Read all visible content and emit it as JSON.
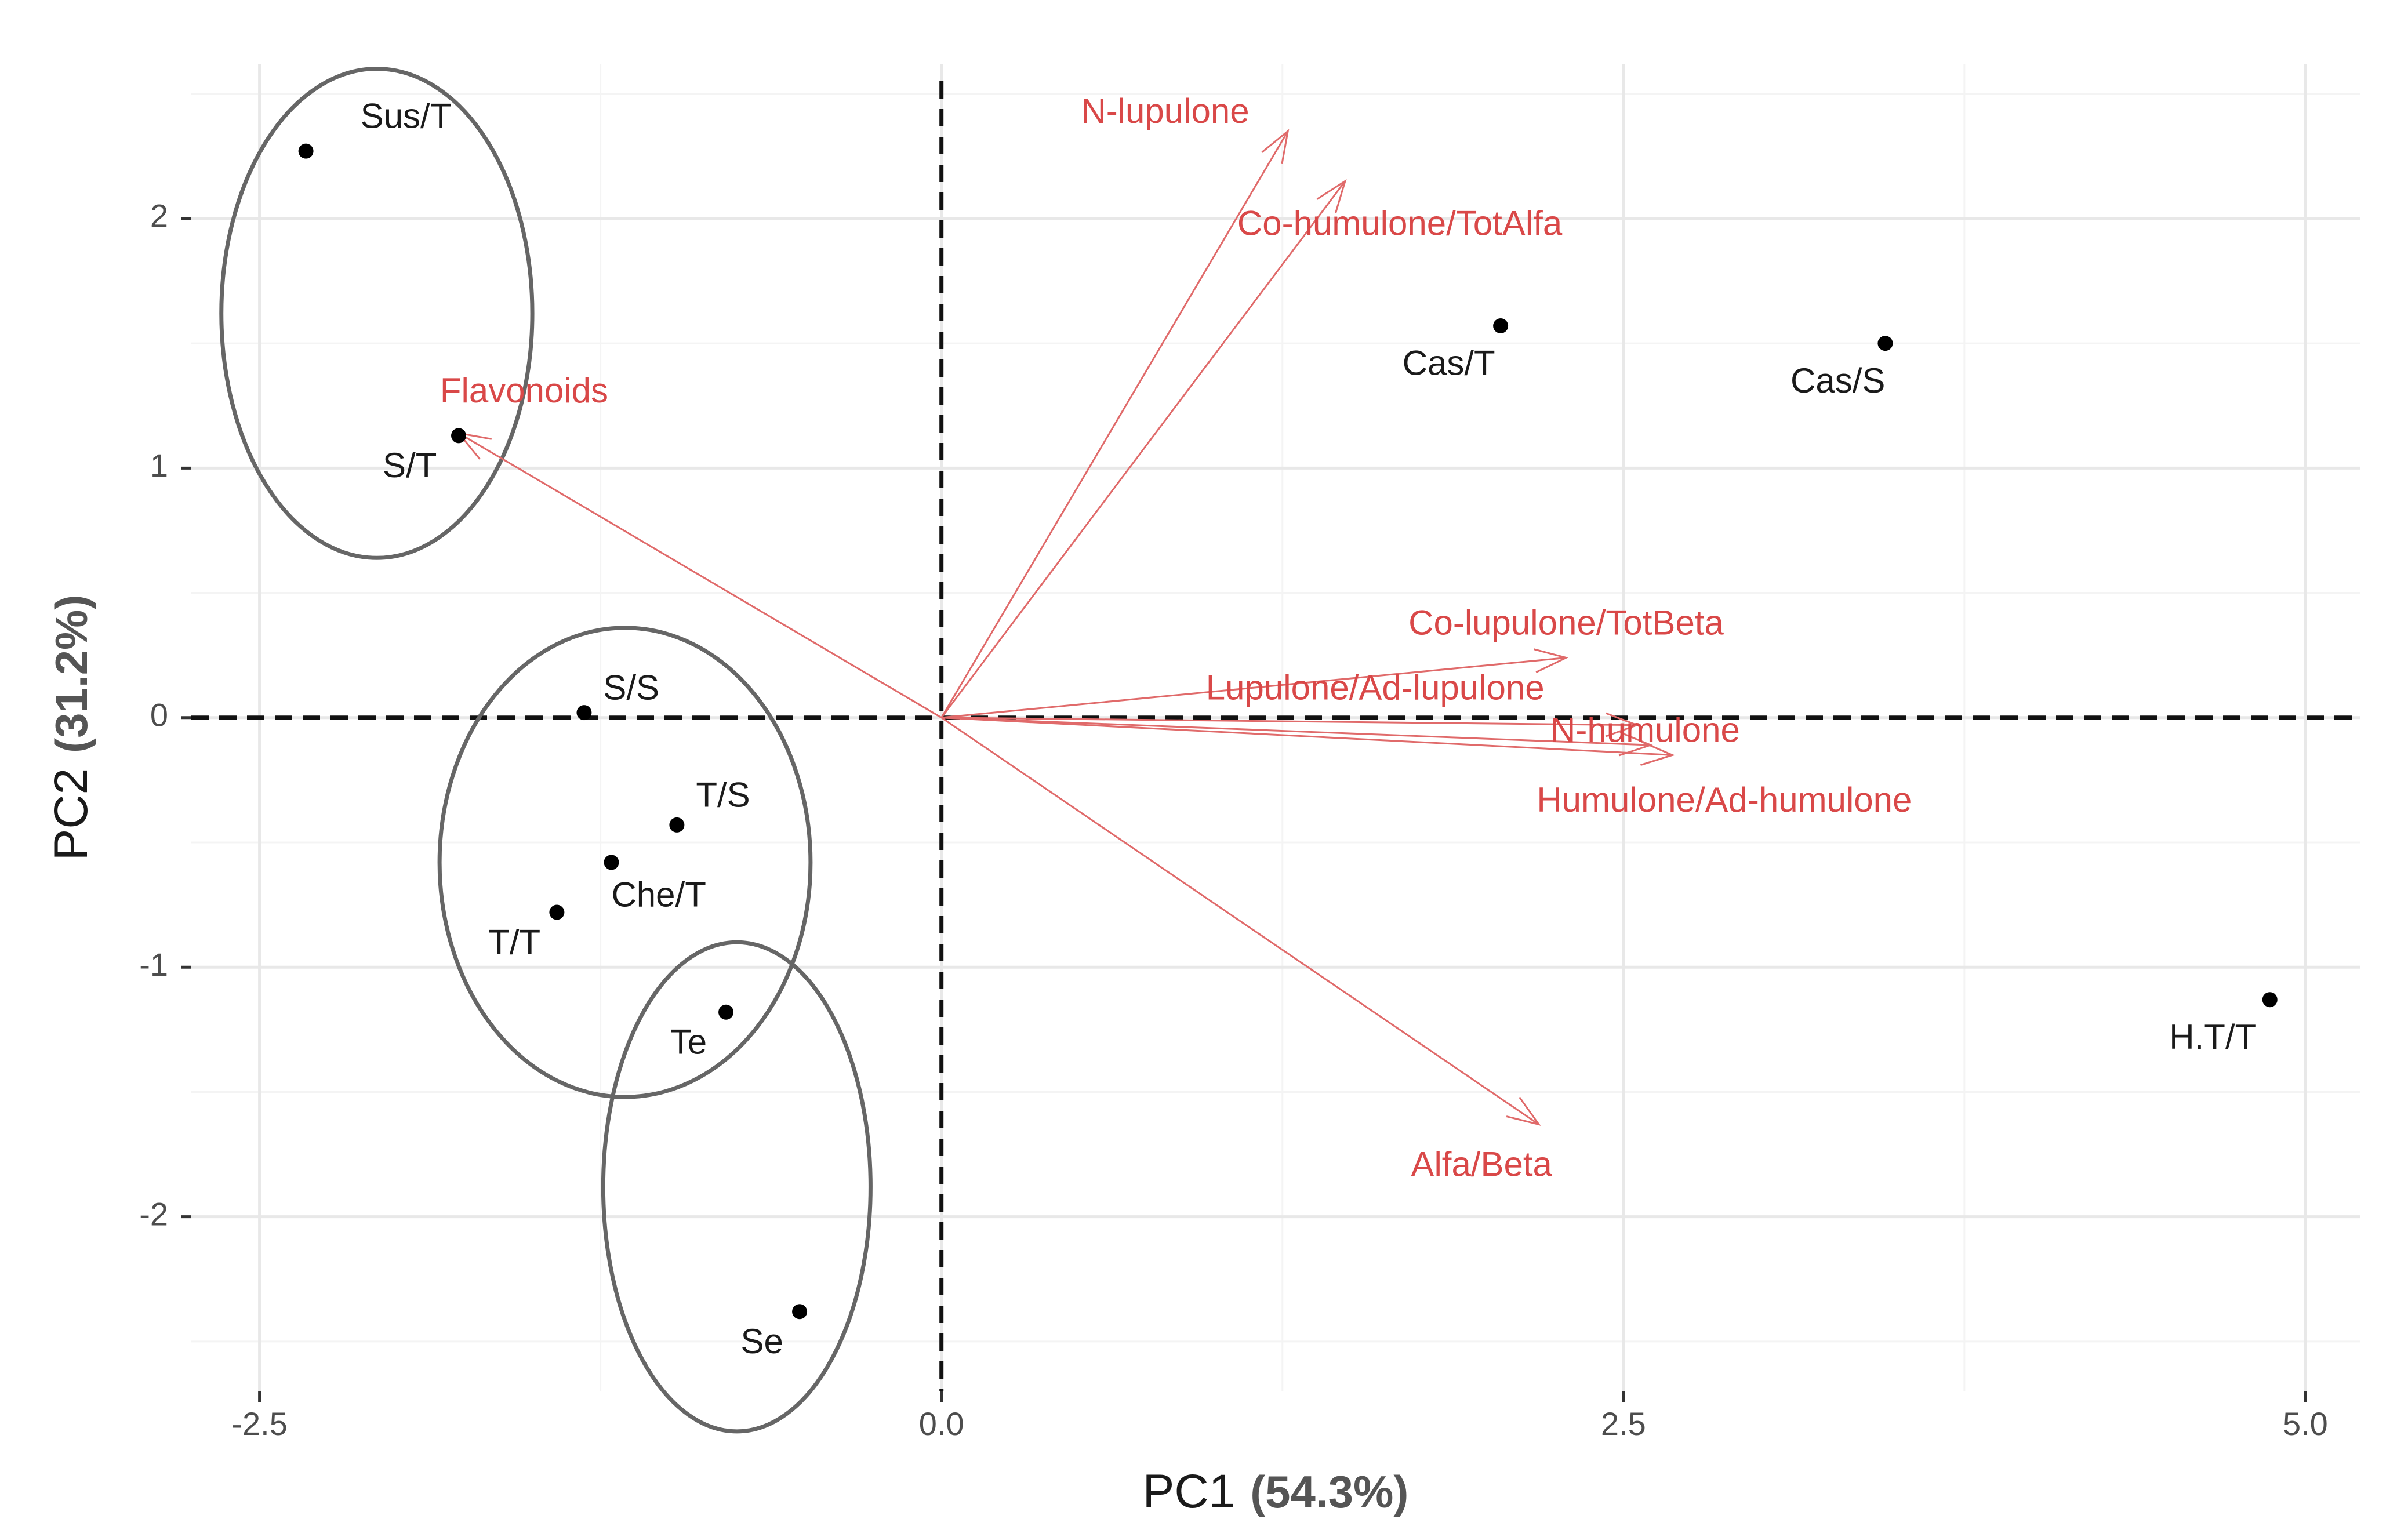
{
  "chart_data": {
    "type": "scatter",
    "subtype": "pca-biplot",
    "xlabel": "PC1",
    "xlabel_pct": "(54.3%)",
    "ylabel": "PC2",
    "ylabel_pct": "(31.2%)",
    "xlim": [
      -2.75,
      5.2
    ],
    "ylim": [
      -2.7,
      2.62
    ],
    "xticks": [
      -2.5,
      0.0,
      2.5,
      5.0
    ],
    "xtick_labels": [
      "-2.5",
      "0.0",
      "2.5",
      "5.0"
    ],
    "yticks": [
      -2,
      -1,
      0,
      1,
      2
    ],
    "ytick_labels": [
      "-2",
      "-1",
      "0",
      "1",
      "2"
    ],
    "grid": true,
    "reference_lines": {
      "x": 0,
      "y": 0,
      "style": "dashed"
    },
    "points": [
      {
        "label": "Sus/T",
        "x": -2.33,
        "y": 2.27,
        "label_dx": 0.2,
        "label_dy": 0.13,
        "anchor": "start"
      },
      {
        "label": "S/T",
        "x": -1.77,
        "y": 1.13,
        "label_dx": -0.08,
        "label_dy": -0.13,
        "anchor": "end"
      },
      {
        "label": "S/S",
        "x": -1.31,
        "y": 0.02,
        "label_dx": 0.07,
        "label_dy": 0.09,
        "anchor": "start"
      },
      {
        "label": "T/S",
        "x": -0.97,
        "y": -0.43,
        "label_dx": 0.07,
        "label_dy": 0.11,
        "anchor": "start"
      },
      {
        "label": "Che/T",
        "x": -1.21,
        "y": -0.58,
        "label_dx": 0.0,
        "label_dy": -0.14,
        "anchor": "start"
      },
      {
        "label": "T/T",
        "x": -1.41,
        "y": -0.78,
        "label_dx": -0.06,
        "label_dy": -0.13,
        "anchor": "end"
      },
      {
        "label": "Te",
        "x": -0.79,
        "y": -1.18,
        "label_dx": -0.07,
        "label_dy": -0.13,
        "anchor": "end"
      },
      {
        "label": "Se",
        "x": -0.52,
        "y": -2.38,
        "label_dx": -0.06,
        "label_dy": -0.13,
        "anchor": "end"
      },
      {
        "label": "Cas/T",
        "x": 2.05,
        "y": 1.57,
        "label_dx": -0.02,
        "label_dy": -0.16,
        "anchor": "end"
      },
      {
        "label": "Cas/S",
        "x": 3.46,
        "y": 1.5,
        "label_dx": 0.0,
        "label_dy": -0.16,
        "anchor": "end"
      },
      {
        "label": "H.T/T",
        "x": 4.87,
        "y": -1.13,
        "label_dx": -0.05,
        "label_dy": -0.16,
        "anchor": "end"
      }
    ],
    "loadings": [
      {
        "label": "N-lupulone",
        "x": 1.27,
        "y": 2.35,
        "label_x": 0.82,
        "label_y": 2.42,
        "anchor": "middle"
      },
      {
        "label": "Co-humulone/TotAlfa",
        "x": 1.48,
        "y": 2.15,
        "label_x": 1.68,
        "label_y": 1.97,
        "anchor": "middle"
      },
      {
        "label": "Flavonoids",
        "x": -1.77,
        "y": 1.14,
        "label_x": -1.53,
        "label_y": 1.3,
        "anchor": "middle"
      },
      {
        "label": "Co-lupulone/TotBeta",
        "x": 2.29,
        "y": 0.24,
        "label_x": 2.29,
        "label_y": 0.37,
        "anchor": "middle"
      },
      {
        "label": "Lupulone/Ad-lupulone",
        "x": 2.55,
        "y": -0.03,
        "label_x": 1.59,
        "label_y": 0.11,
        "anchor": "middle"
      },
      {
        "label": "N-humulone",
        "x": 2.6,
        "y": -0.11,
        "label_x": 2.58,
        "label_y": -0.06,
        "anchor": "middle"
      },
      {
        "label": "Humulone/Ad-humulone",
        "x": 2.68,
        "y": -0.15,
        "label_x": 2.87,
        "label_y": -0.34,
        "anchor": "middle"
      },
      {
        "label": "Alfa/Beta",
        "x": 2.19,
        "y": -1.63,
        "label_x": 1.98,
        "label_y": -1.8,
        "anchor": "middle"
      }
    ],
    "ellipses": [
      {
        "group": 1,
        "cx": -2.07,
        "cy": 1.62,
        "rx": 0.57,
        "ry": 0.98
      },
      {
        "group": 2,
        "cx": -1.16,
        "cy": -0.58,
        "rx": 0.68,
        "ry": 0.94
      },
      {
        "group": 3,
        "cx": -0.75,
        "cy": -1.88,
        "rx": 0.49,
        "ry": 0.98
      }
    ]
  }
}
